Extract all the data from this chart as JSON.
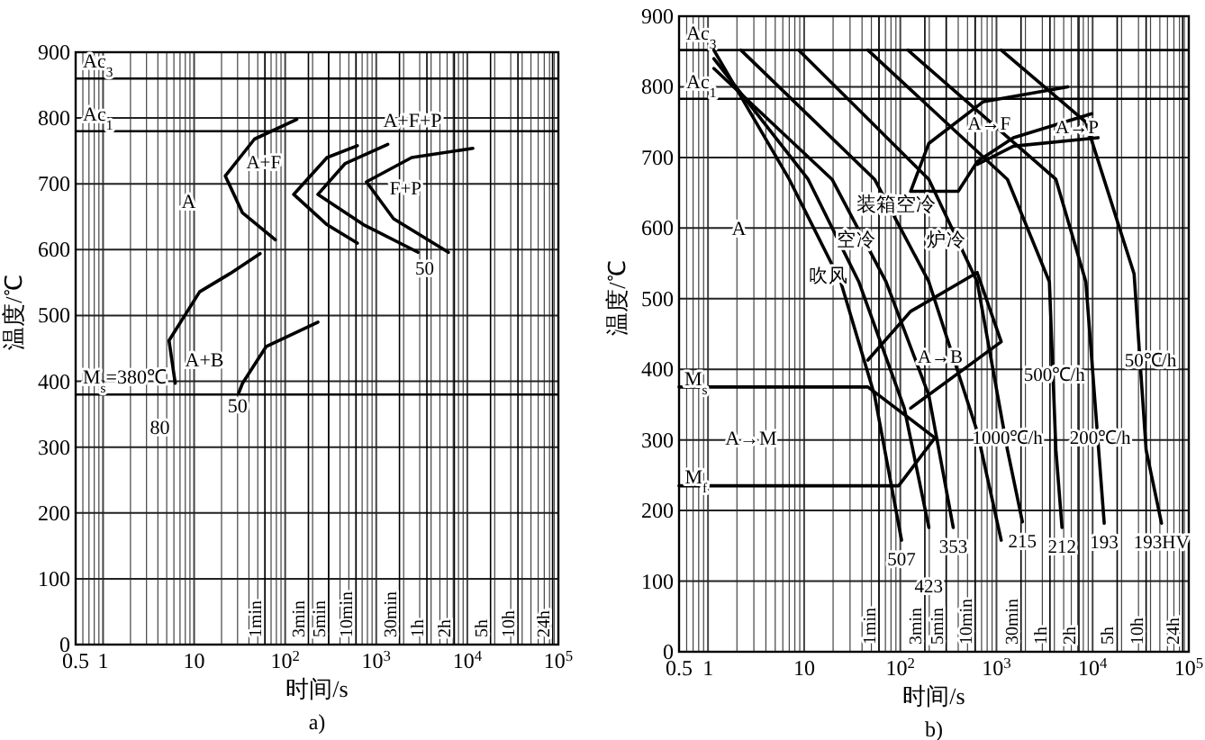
{
  "chart_data": [
    {
      "type": "line",
      "title": "a)",
      "xlabel": "时间/s",
      "ylabel": "温度/℃",
      "log": "x",
      "grid": true,
      "xlim": [
        0.5,
        100000
      ],
      "ylim": [
        0,
        900
      ],
      "xticks": [
        0.5,
        1,
        10,
        {
          "value": 100,
          "label": "10$^{2}$"
        },
        {
          "value": 1000,
          "label": "10$^{3}$"
        },
        {
          "value": 10000,
          "label": "10$^{4}$"
        },
        {
          "value": 100000,
          "label": "10$^{5}$"
        }
      ],
      "yticks": [
        0,
        100,
        200,
        300,
        400,
        500,
        600,
        700,
        800,
        900
      ],
      "series": [
        {
          "color": "#000000",
          "x": [
            134,
            46,
            22,
            34,
            78
          ],
          "values": [
            798,
            768,
            712,
            656,
            615
          ]
        },
        {
          "color": "#000000",
          "x": [
            53,
            25,
            11.5,
            5.3,
            6.2
          ],
          "values": [
            594,
            564,
            536,
            462,
            397
          ]
        },
        {
          "color": "#000000",
          "x": [
            620,
            288,
            124,
            288,
            620
          ],
          "values": [
            758,
            740,
            684,
            638,
            610
          ]
        },
        {
          "color": "#000000",
          "x": [
            1340,
            457,
            229,
            724,
            2880
          ],
          "values": [
            760,
            731,
            684,
            638,
            596
          ]
        },
        {
          "color": "#000000",
          "x": [
            11500,
            2450,
            780,
            1550,
            6200
          ],
          "values": [
            754,
            740,
            703,
            647,
            596
          ]
        },
        {
          "color": "#000000",
          "x": [
            229,
            62,
            34,
            31
          ],
          "values": [
            490,
            453,
            397,
            383
          ]
        }
      ],
      "ref_lines": [
        {
          "axis": "y",
          "value": 860,
          "label": "Ac$_{3}$"
        },
        {
          "axis": "y",
          "value": 780,
          "label": "Ac$_{1}$"
        },
        {
          "axis": "y",
          "value": 380,
          "label": "M$_{s}$=380℃"
        },
        {
          "axis": "x",
          "value": 60,
          "label": "1min"
        },
        {
          "axis": "x",
          "value": 180,
          "label": "3min"
        },
        {
          "axis": "x",
          "value": 300,
          "label": "5min"
        },
        {
          "axis": "x",
          "value": 600,
          "label": "10min"
        },
        {
          "axis": "x",
          "value": 1800,
          "label": "30min"
        },
        {
          "axis": "x",
          "value": 3600,
          "label": "1h"
        },
        {
          "axis": "x",
          "value": 7200,
          "label": "2h"
        },
        {
          "axis": "x",
          "value": 18000,
          "label": "5h"
        },
        {
          "axis": "x",
          "value": 36000,
          "label": "10h"
        },
        {
          "axis": "x",
          "value": 86400,
          "label": "24h"
        }
      ],
      "annotations": [
        "A",
        {
          "text": "A+F",
          "x": 58,
          "y": 762
        },
        "A+F+P",
        {
          "text": "F+P",
          "x": 2100,
          "y": 722
        },
        {
          "text": "50",
          "x": 3400,
          "y": 600
        },
        "A+B",
        "80",
        "50"
      ]
    },
    {
      "type": "line",
      "title": "b)",
      "xlabel": "时间/s",
      "ylabel": "温度/℃",
      "log": "x",
      "grid": true,
      "xlim": [
        0.5,
        100000
      ],
      "ylim": [
        0,
        900
      ],
      "xticks": [
        0.5,
        1,
        10,
        {
          "value": 100,
          "label": "10$^{2}$"
        },
        {
          "value": 1000,
          "label": "10$^{3}$"
        },
        {
          "value": 10000,
          "label": "10$^{4}$"
        },
        {
          "value": 100000,
          "label": "10$^{5}$"
        }
      ],
      "yticks": [
        0,
        100,
        200,
        300,
        400,
        500,
        600,
        700,
        800,
        900
      ],
      "series": [
        {
          "color": "#000000",
          "x": [
            1.15,
            7,
            24,
            54,
            103
          ],
          "values": [
            852,
            669,
            524,
            363,
            158
          ]
        },
        {
          "color": "#000000",
          "x": [
            1.15,
            11,
            37,
            110,
            198
          ],
          "values": [
            840,
            669,
            524,
            345,
            176
          ]
        },
        {
          "color": "#000000",
          "x": [
            1.15,
            19.5,
            71,
            198,
            355
          ],
          "values": [
            826,
            669,
            524,
            363,
            176
          ]
        },
        {
          "color": "#000000",
          "x": [
            2.2,
            54,
            198,
            630,
            1120
          ],
          "values": [
            852,
            669,
            524,
            312,
            158
          ]
        },
        {
          "color": "#000000",
          "x": [
            8.8,
            198,
            630,
            1300,
            1860
          ],
          "values": [
            852,
            669,
            524,
            286,
            184
          ]
        },
        {
          "color": "#000000",
          "x": [
            46,
            1300,
            3550,
            4150,
            4800
          ],
          "values": [
            852,
            669,
            524,
            286,
            176
          ]
        },
        {
          "color": "#000000",
          "x": [
            120,
            4150,
            8500,
            13200
          ],
          "values": [
            852,
            669,
            524,
            182
          ]
        },
        {
          "color": "#000000",
          "x": [
            1120,
            8500,
            27000,
            36000,
            52000
          ],
          "values": [
            852,
            750,
            535,
            286,
            182
          ]
        },
        {
          "color": "#000000",
          "x": [
            5500,
            730,
            198,
            128,
            400,
            630,
            1500,
            9800
          ],
          "values": [
            800,
            779,
            720,
            652,
            652,
            694,
            728,
            762
          ]
        },
        {
          "color": "#000000",
          "x": [
            630,
            1500,
            11400
          ],
          "values": [
            690,
            716,
            728
          ]
        },
        {
          "color": "#000000",
          "x": [
            46,
            128,
            630,
            1120,
            128
          ],
          "values": [
            413,
            482,
            537,
            439,
            345
          ]
        },
        {
          "color": "#000000",
          "x": [
            0.5,
            46,
            229
          ],
          "values": [
            375,
            375,
            303
          ]
        },
        {
          "color": "#000000",
          "x": [
            0.5,
            96,
            229
          ],
          "values": [
            235,
            235,
            303
          ]
        }
      ],
      "ref_lines": [
        {
          "axis": "y",
          "value": 852,
          "label": "Ac$_{3}$"
        },
        {
          "axis": "y",
          "value": 783,
          "label": "Ac$_{1}$"
        },
        {
          "axis": "x",
          "value": 60,
          "label": "1min"
        },
        {
          "axis": "x",
          "value": 180,
          "label": "3min"
        },
        {
          "axis": "x",
          "value": 300,
          "label": "5min"
        },
        {
          "axis": "x",
          "value": 600,
          "label": "10min"
        },
        {
          "axis": "x",
          "value": 1800,
          "label": "30min"
        },
        {
          "axis": "x",
          "value": 3600,
          "label": "1h"
        },
        {
          "axis": "x",
          "value": 7200,
          "label": "2h"
        },
        {
          "axis": "x",
          "value": 18000,
          "label": "5h"
        },
        {
          "axis": "x",
          "value": 36000,
          "label": "10h"
        },
        {
          "axis": "x",
          "value": 86400,
          "label": "24h"
        }
      ],
      "annotations": [
        "A",
        {
          "text": "A→F",
          "x": 840,
          "y": 775
        },
        {
          "text": "A→P",
          "x": 6900,
          "y": 770
        },
        {
          "text": "A→B",
          "x": 260,
          "y": 445
        },
        "A→M",
        "M$_{s}$",
        "M$_{f}$",
        {
          "text": "507",
          "x": 103,
          "y": 158
        },
        {
          "text": "423",
          "x": 198,
          "y": 176
        },
        {
          "text": "353",
          "x": 355,
          "y": 176
        },
        {
          "text": "215",
          "x": 1860,
          "y": 184
        },
        {
          "text": "212",
          "x": 4800,
          "y": 176
        },
        {
          "text": "193",
          "x": 13200,
          "y": 182
        },
        {
          "text": "193HV",
          "x": 52000,
          "y": 182
        },
        {
          "text": "1000℃/h",
          "x": 1300,
          "y": 330
        },
        {
          "text": "500℃/h",
          "x": 4000,
          "y": 420
        },
        {
          "text": "200℃/h",
          "x": 12000,
          "y": 330
        },
        {
          "text": "50℃/h",
          "x": 40000,
          "y": 440
        },
        {
          "text": "吹风",
          "x": 18,
          "y": 560
        },
        {
          "text": "空冷",
          "x": 35,
          "y": 610
        },
        "装箱空冷",
        {
          "text": "炉冷",
          "x": 300,
          "y": 610
        }
      ]
    }
  ]
}
